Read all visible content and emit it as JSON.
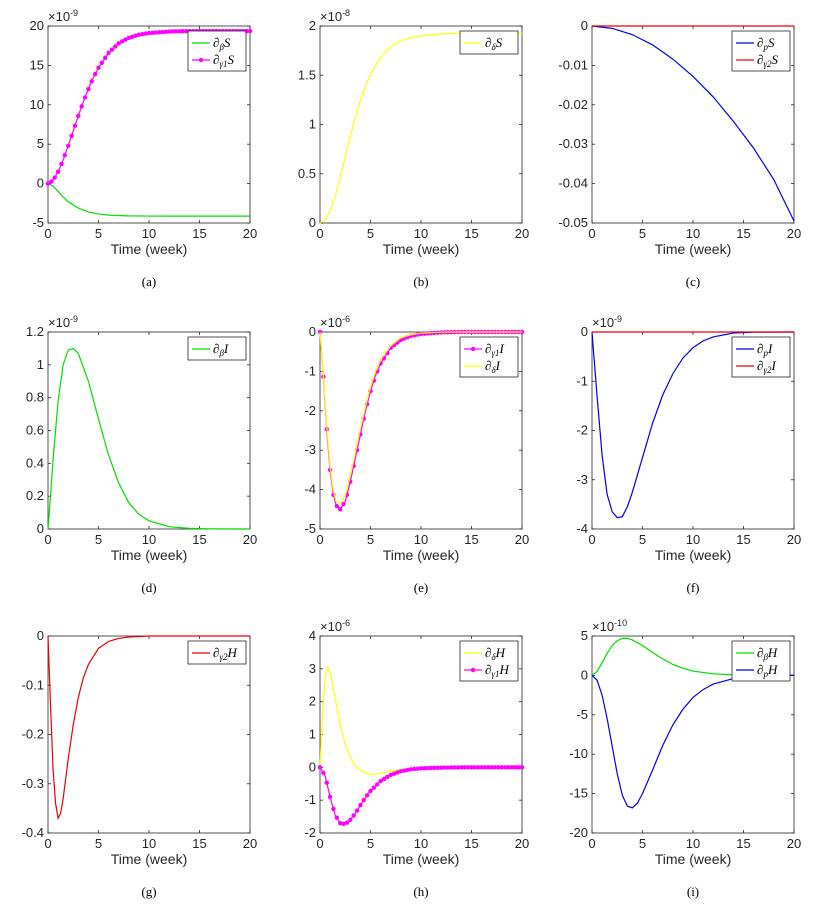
{
  "chart_data": [
    {
      "id": "a",
      "type": "line",
      "caption": "(a)",
      "xlabel": "Time (week)",
      "xlim": [
        0,
        20
      ],
      "ylim": [
        -5,
        20
      ],
      "yticks": [
        -5,
        0,
        5,
        10,
        15,
        20
      ],
      "xticks": [
        0,
        5,
        10,
        15,
        20
      ],
      "multiplier": "×10-9",
      "legend_position": "top-right",
      "series": [
        {
          "name": "∂βS",
          "color": "#00dd00",
          "marker": false,
          "x": [
            0,
            0.5,
            1,
            1.5,
            2,
            3,
            4,
            5,
            6,
            8,
            10,
            12,
            15,
            20
          ],
          "y": [
            0,
            -0.3,
            -1.0,
            -1.7,
            -2.3,
            -3.1,
            -3.6,
            -3.85,
            -4.0,
            -4.1,
            -4.12,
            -4.13,
            -4.13,
            -4.13
          ]
        },
        {
          "name": "∂γ1S",
          "color": "#ff00ff",
          "marker": true,
          "x": [
            0,
            0.5,
            1,
            1.5,
            2,
            2.5,
            3,
            3.5,
            4,
            4.5,
            5,
            6,
            7,
            8,
            9,
            10,
            12,
            14,
            16,
            18,
            20
          ],
          "y": [
            0,
            0.4,
            1.5,
            3.0,
            4.8,
            6.7,
            8.6,
            10.4,
            12.0,
            13.5,
            14.7,
            16.6,
            17.8,
            18.5,
            18.9,
            19.1,
            19.3,
            19.35,
            19.35,
            19.35,
            19.35
          ]
        }
      ]
    },
    {
      "id": "b",
      "type": "line",
      "caption": "(b)",
      "xlabel": "Time (week)",
      "xlim": [
        0,
        20
      ],
      "ylim": [
        0,
        2
      ],
      "yticks": [
        0,
        0.5,
        1,
        1.5,
        2
      ],
      "xticks": [
        0,
        5,
        10,
        15,
        20
      ],
      "multiplier": "×10-8",
      "legend_position": "top-right",
      "series": [
        {
          "name": "∂δS",
          "color": "#ffff00",
          "marker": false,
          "x": [
            0,
            0.5,
            1,
            1.5,
            2,
            2.5,
            3,
            3.5,
            4,
            4.5,
            5,
            6,
            7,
            8,
            9,
            10,
            12,
            14,
            16,
            20
          ],
          "y": [
            0,
            0.03,
            0.12,
            0.27,
            0.46,
            0.67,
            0.88,
            1.07,
            1.24,
            1.39,
            1.51,
            1.68,
            1.79,
            1.85,
            1.88,
            1.9,
            1.92,
            1.925,
            1.925,
            1.925
          ]
        }
      ]
    },
    {
      "id": "c",
      "type": "line",
      "caption": "(c)",
      "xlabel": "Time (week)",
      "xlim": [
        0,
        20
      ],
      "ylim": [
        -0.05,
        0
      ],
      "yticks": [
        -0.05,
        -0.04,
        -0.03,
        -0.02,
        -0.01,
        0
      ],
      "xticks": [
        0,
        5,
        10,
        15,
        20
      ],
      "multiplier": "",
      "legend_position": "top-right",
      "series": [
        {
          "name": "∂pS",
          "color": "#0000ee",
          "marker": false,
          "x": [
            0,
            2,
            4,
            6,
            8,
            10,
            12,
            14,
            16,
            18,
            20
          ],
          "y": [
            0,
            -0.0006,
            -0.0022,
            -0.0048,
            -0.0084,
            -0.0128,
            -0.018,
            -0.0242,
            -0.031,
            -0.039,
            -0.0495
          ]
        },
        {
          "name": "∂γ2S",
          "color": "#ee0000",
          "marker": false,
          "x": [
            0,
            20
          ],
          "y": [
            0,
            0
          ]
        }
      ]
    },
    {
      "id": "d",
      "type": "line",
      "caption": "(d)",
      "xlabel": "Time (week)",
      "xlim": [
        0,
        20
      ],
      "ylim": [
        0,
        1.2
      ],
      "yticks": [
        0,
        0.2,
        0.4,
        0.6,
        0.8,
        1,
        1.2
      ],
      "xticks": [
        0,
        5,
        10,
        15,
        20
      ],
      "multiplier": "×10-9",
      "legend_position": "top-right",
      "series": [
        {
          "name": "∂βI",
          "color": "#00dd00",
          "marker": false,
          "x": [
            0,
            0.25,
            0.5,
            1,
            1.5,
            2,
            2.5,
            3,
            4,
            5,
            6,
            7,
            8,
            9,
            10,
            12,
            14,
            16,
            20
          ],
          "y": [
            0,
            0.2,
            0.42,
            0.78,
            1.0,
            1.09,
            1.1,
            1.07,
            0.9,
            0.67,
            0.45,
            0.28,
            0.16,
            0.09,
            0.05,
            0.014,
            0.004,
            0.001,
            0
          ]
        }
      ]
    },
    {
      "id": "e",
      "type": "line",
      "caption": "(e)",
      "xlabel": "Time (week)",
      "xlim": [
        0,
        20
      ],
      "ylim": [
        -5,
        0
      ],
      "yticks": [
        -5,
        -4,
        -3,
        -2,
        -1,
        0
      ],
      "xticks": [
        0,
        5,
        10,
        15,
        20
      ],
      "multiplier": "×10-6",
      "legend_position": "top-right",
      "series": [
        {
          "name": "∂γ1I",
          "color": "#ff00ff",
          "marker": true,
          "x": [
            0,
            0.3,
            0.7,
            1,
            1.3,
            1.6,
            2,
            2.5,
            3,
            3.5,
            4,
            4.5,
            5,
            5.5,
            6,
            7,
            8,
            9,
            10,
            12,
            14,
            16,
            18,
            20
          ],
          "y": [
            0,
            -1.0,
            -2.6,
            -3.5,
            -4.1,
            -4.4,
            -4.5,
            -4.3,
            -3.8,
            -3.2,
            -2.6,
            -2.0,
            -1.5,
            -1.1,
            -0.8,
            -0.4,
            -0.2,
            -0.1,
            -0.05,
            -0.01,
            0,
            0,
            0,
            0
          ]
        },
        {
          "name": "∂δI",
          "color": "#ffff00",
          "marker": false,
          "x": [
            0,
            0.3,
            0.7,
            1,
            1.3,
            1.6,
            2,
            2.5,
            3,
            3.5,
            4,
            4.5,
            5,
            5.5,
            6,
            7,
            8,
            9,
            10,
            12,
            14,
            16,
            20
          ],
          "y": [
            0,
            -1.0,
            -2.5,
            -3.4,
            -4.0,
            -4.3,
            -4.35,
            -4.15,
            -3.65,
            -3.05,
            -2.45,
            -1.9,
            -1.4,
            -1.0,
            -0.7,
            -0.35,
            -0.15,
            -0.07,
            -0.03,
            -0.005,
            0,
            0,
            0
          ]
        }
      ]
    },
    {
      "id": "f",
      "type": "line",
      "caption": "(f)",
      "xlabel": "Time (week)",
      "xlim": [
        0,
        20
      ],
      "ylim": [
        -4,
        0
      ],
      "yticks": [
        -4,
        -3,
        -2,
        -1,
        0
      ],
      "xticks": [
        0,
        5,
        10,
        15,
        20
      ],
      "multiplier": "×10-9",
      "legend_position": "top-right",
      "series": [
        {
          "name": "∂pI",
          "color": "#0000ee",
          "marker": false,
          "x": [
            0,
            0.5,
            1,
            1.5,
            2,
            2.5,
            3,
            3.5,
            4,
            4.5,
            5,
            6,
            7,
            8,
            9,
            10,
            11,
            12,
            14,
            16,
            20
          ],
          "y": [
            0,
            -1.3,
            -2.5,
            -3.3,
            -3.65,
            -3.77,
            -3.75,
            -3.55,
            -3.25,
            -2.9,
            -2.55,
            -1.85,
            -1.28,
            -0.85,
            -0.53,
            -0.32,
            -0.18,
            -0.1,
            -0.02,
            -0.003,
            0
          ]
        },
        {
          "name": "∂γ2I",
          "color": "#ee0000",
          "marker": false,
          "x": [
            0,
            20
          ],
          "y": [
            0,
            0
          ]
        }
      ]
    },
    {
      "id": "g",
      "type": "line",
      "caption": "(g)",
      "xlabel": "Time (week)",
      "xlim": [
        0,
        20
      ],
      "ylim": [
        -0.4,
        0
      ],
      "yticks": [
        -0.4,
        -0.3,
        -0.2,
        -0.1,
        0
      ],
      "xticks": [
        0,
        5,
        10,
        15,
        20
      ],
      "multiplier": "",
      "legend_position": "top-right",
      "series": [
        {
          "name": "∂γ2H",
          "color": "#ee0000",
          "marker": false,
          "x": [
            0,
            0.25,
            0.5,
            0.75,
            1,
            1.25,
            1.5,
            2,
            2.5,
            3,
            3.5,
            4,
            5,
            6,
            7,
            8,
            10,
            12,
            15,
            20
          ],
          "y": [
            0,
            -0.14,
            -0.27,
            -0.34,
            -0.37,
            -0.36,
            -0.33,
            -0.25,
            -0.18,
            -0.125,
            -0.085,
            -0.058,
            -0.025,
            -0.011,
            -0.005,
            -0.002,
            0,
            0,
            0,
            0
          ]
        }
      ]
    },
    {
      "id": "h",
      "type": "line",
      "caption": "(h)",
      "xlabel": "Time (week)",
      "xlim": [
        0,
        20
      ],
      "ylim": [
        -2,
        4
      ],
      "yticks": [
        -2,
        -1,
        0,
        1,
        2,
        3,
        4
      ],
      "xticks": [
        0,
        5,
        10,
        15,
        20
      ],
      "multiplier": "×10-6",
      "legend_position": "top-right",
      "series": [
        {
          "name": "∂δH",
          "color": "#ffff00",
          "marker": false,
          "x": [
            0,
            0.25,
            0.5,
            0.75,
            1,
            1.5,
            2,
            2.5,
            3,
            3.5,
            4,
            5,
            6,
            7,
            8,
            10,
            12,
            15,
            20
          ],
          "y": [
            0,
            1.6,
            2.7,
            3.05,
            2.9,
            2.1,
            1.3,
            0.7,
            0.3,
            0.05,
            -0.1,
            -0.22,
            -0.18,
            -0.12,
            -0.07,
            -0.02,
            0,
            0,
            0
          ]
        },
        {
          "name": "∂γ1H",
          "color": "#ff00ff",
          "marker": true,
          "x": [
            0,
            0.5,
            1,
            1.5,
            2,
            2.5,
            3,
            3.5,
            4,
            4.5,
            5,
            6,
            7,
            8,
            9,
            10,
            12,
            14,
            16,
            18,
            20
          ],
          "y": [
            0,
            -0.25,
            -0.9,
            -1.45,
            -1.7,
            -1.73,
            -1.6,
            -1.4,
            -1.15,
            -0.92,
            -0.72,
            -0.42,
            -0.23,
            -0.12,
            -0.06,
            -0.03,
            -0.01,
            0,
            0,
            0,
            0
          ]
        }
      ]
    },
    {
      "id": "i",
      "type": "line",
      "caption": "(i)",
      "xlabel": "Time (week)",
      "xlim": [
        0,
        20
      ],
      "ylim": [
        -20,
        5
      ],
      "yticks": [
        -20,
        -15,
        -10,
        -5,
        0,
        5
      ],
      "xticks": [
        0,
        5,
        10,
        15,
        20
      ],
      "multiplier": "×10-10",
      "legend_position": "top-right",
      "series": [
        {
          "name": "∂βH",
          "color": "#00dd00",
          "marker": false,
          "x": [
            0,
            0.5,
            1,
            1.5,
            2,
            2.5,
            3,
            3.5,
            4,
            5,
            6,
            7,
            8,
            9,
            10,
            12,
            14,
            16,
            20
          ],
          "y": [
            0,
            0.5,
            1.6,
            2.8,
            3.8,
            4.4,
            4.7,
            4.7,
            4.5,
            3.8,
            2.9,
            2.1,
            1.4,
            0.9,
            0.55,
            0.2,
            0.07,
            0.02,
            0
          ]
        },
        {
          "name": "∂pH",
          "color": "#0000ee",
          "marker": false,
          "x": [
            0,
            0.5,
            1,
            1.5,
            2,
            2.5,
            3,
            3.5,
            4,
            4.5,
            5,
            6,
            7,
            8,
            9,
            10,
            11,
            12,
            14,
            16,
            18,
            20
          ],
          "y": [
            0,
            -0.6,
            -2.5,
            -5.5,
            -9.0,
            -12.5,
            -15.2,
            -16.6,
            -16.8,
            -16.2,
            -15.0,
            -12.0,
            -8.9,
            -6.3,
            -4.3,
            -2.8,
            -1.8,
            -1.1,
            -0.4,
            -0.1,
            0,
            0
          ]
        }
      ]
    }
  ]
}
